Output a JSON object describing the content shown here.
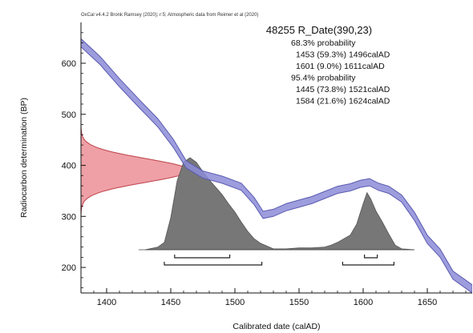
{
  "header": "OxCal v4.4.2 Bronk Ramsey (2020); r:5; Atmospheric data from Reimer et al (2020)",
  "chart_data": {
    "type": "area",
    "title": "48255 R_Date(390,23)",
    "xlabel": "Calibrated date (calAD)",
    "ylabel": "Radiocarbon determination (BP)",
    "xlim": [
      1380,
      1685
    ],
    "ylim": [
      150,
      680
    ],
    "x_ticks": [
      1400,
      1450,
      1500,
      1550,
      1600,
      1650
    ],
    "y_ticks": [
      200,
      300,
      400,
      500,
      600
    ],
    "grid": false,
    "probability_text": [
      {
        "text": "68.3% probability",
        "indent": false
      },
      {
        "text": "1453 (59.3%) 1496calAD",
        "indent": true
      },
      {
        "text": "1601 (9.0%) 1611calAD",
        "indent": true
      },
      {
        "text": "95.4% probability",
        "indent": false
      },
      {
        "text": "1445 (73.8%) 1521calAD",
        "indent": true
      },
      {
        "text": "1584 (21.6%) 1624calAD",
        "indent": true
      }
    ],
    "calibration_curve": {
      "color": "#8c8cd8",
      "x": [
        1380,
        1395,
        1410,
        1425,
        1440,
        1452,
        1462,
        1475,
        1490,
        1505,
        1515,
        1522,
        1530,
        1540,
        1550,
        1560,
        1570,
        1580,
        1590,
        1598,
        1605,
        1612,
        1620,
        1630,
        1640,
        1650,
        1660,
        1670,
        1685
      ],
      "y": [
        640,
        605,
        562,
        522,
        483,
        443,
        402,
        382,
        372,
        358,
        330,
        303,
        307,
        318,
        325,
        332,
        342,
        352,
        357,
        364,
        367,
        358,
        352,
        335,
        300,
        255,
        228,
        185,
        158
      ],
      "sigma": [
        8,
        8,
        8,
        8,
        8,
        8,
        7,
        7,
        7,
        7,
        7,
        7,
        7,
        7,
        7,
        7,
        7,
        7,
        7,
        7,
        7,
        7,
        7,
        7,
        8,
        8,
        8,
        8,
        8
      ]
    },
    "radiocarbon_date": {
      "color": "#e88088",
      "mean": 390,
      "error": 23
    },
    "posterior": {
      "color": "#777777",
      "x": [
        1430,
        1440,
        1445,
        1450,
        1455,
        1460,
        1465,
        1470,
        1475,
        1480,
        1485,
        1490,
        1495,
        1500,
        1505,
        1510,
        1515,
        1520,
        1525,
        1530,
        1540,
        1550,
        1560,
        1570,
        1575,
        1580,
        1585,
        1590,
        1595,
        1600,
        1603,
        1606,
        1610,
        1615,
        1620,
        1625,
        1630,
        1640
      ],
      "y": [
        0.0,
        0.03,
        0.08,
        0.35,
        0.75,
        0.95,
        1.0,
        0.95,
        0.85,
        0.76,
        0.68,
        0.6,
        0.5,
        0.41,
        0.3,
        0.2,
        0.12,
        0.07,
        0.04,
        0.01,
        0.01,
        0.02,
        0.02,
        0.03,
        0.05,
        0.08,
        0.12,
        0.16,
        0.28,
        0.5,
        0.62,
        0.55,
        0.42,
        0.3,
        0.17,
        0.05,
        0.01,
        0.0
      ]
    },
    "ranges_68": [
      [
        1453,
        1496
      ],
      [
        1601,
        1611
      ]
    ],
    "ranges_95": [
      [
        1445,
        1521
      ],
      [
        1584,
        1624
      ]
    ]
  }
}
